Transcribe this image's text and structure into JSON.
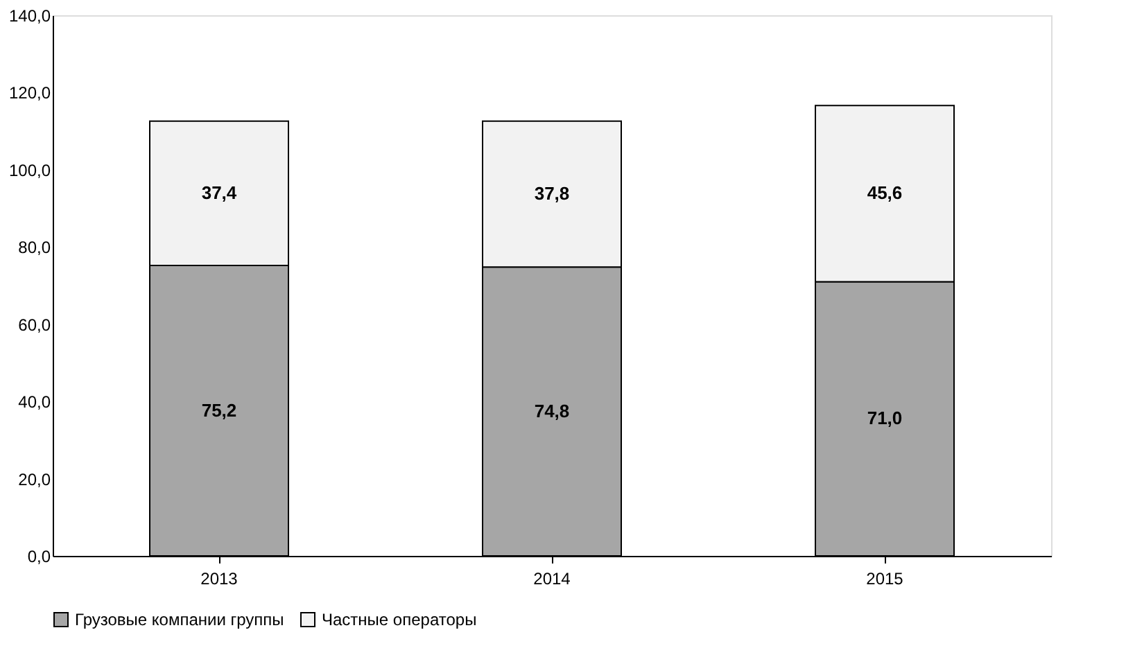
{
  "chart_data": {
    "type": "bar",
    "stacked": true,
    "categories": [
      "2013",
      "2014",
      "2015"
    ],
    "series": [
      {
        "name": "Грузовые компании группы",
        "color": "#a6a6a6",
        "values": [
          75.2,
          74.8,
          71.0
        ],
        "value_labels": [
          "75,2",
          "74,8",
          "71,0"
        ]
      },
      {
        "name": "Частные операторы",
        "color": "#f2f2f2",
        "values": [
          37.4,
          37.8,
          45.6
        ],
        "value_labels": [
          "37,4",
          "37,8",
          "45,6"
        ]
      }
    ],
    "ylim": [
      0,
      140
    ],
    "yticks": [
      {
        "value": 0,
        "label": "0,0"
      },
      {
        "value": 20,
        "label": "20,0"
      },
      {
        "value": 40,
        "label": "40,0"
      },
      {
        "value": 60,
        "label": "60,0"
      },
      {
        "value": 80,
        "label": "80,0"
      },
      {
        "value": 100,
        "label": "100,0"
      },
      {
        "value": 120,
        "label": "120,0"
      },
      {
        "value": 140,
        "label": "140,0"
      }
    ],
    "grid": false,
    "legend": "bottom"
  }
}
